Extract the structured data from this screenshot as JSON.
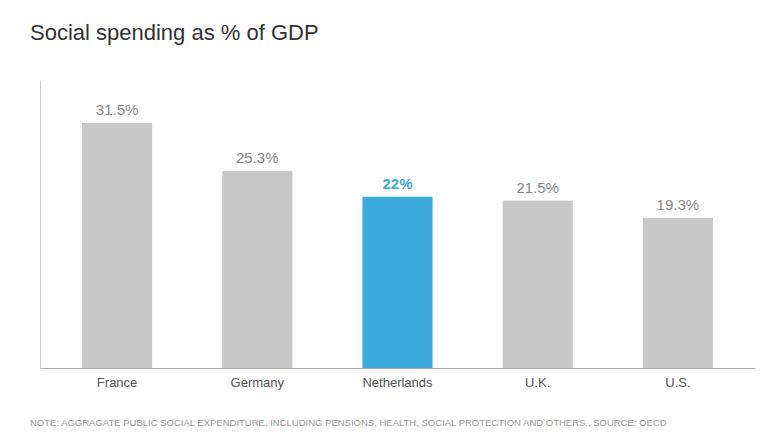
{
  "chart_data": {
    "type": "bar",
    "title": "Social spending as % of GDP",
    "categories": [
      "France",
      "Germany",
      "Netherlands",
      "U.K.",
      "U.S."
    ],
    "values": [
      31.5,
      25.3,
      22.0,
      21.5,
      19.3
    ],
    "value_labels": [
      "31.5%",
      "25.3%",
      "22%",
      "21.5%",
      "19.3%"
    ],
    "colors": [
      "#c8c8c8",
      "#c8c8c8",
      "#3aabdc",
      "#c8c8c8",
      "#c8c8c8"
    ],
    "ylim": [
      0,
      37
    ],
    "grid": false,
    "data_labels": true,
    "tick_labels": "x",
    "annotations": [
      "NOTE: AGGRAGATE PUBLIC SOCIAL EXPENDITURE, INCLUDING PENSIONS, HEALTH, SOCIAL PROTECTION AND OTHERS.,  SOURCE: OECD"
    ]
  }
}
